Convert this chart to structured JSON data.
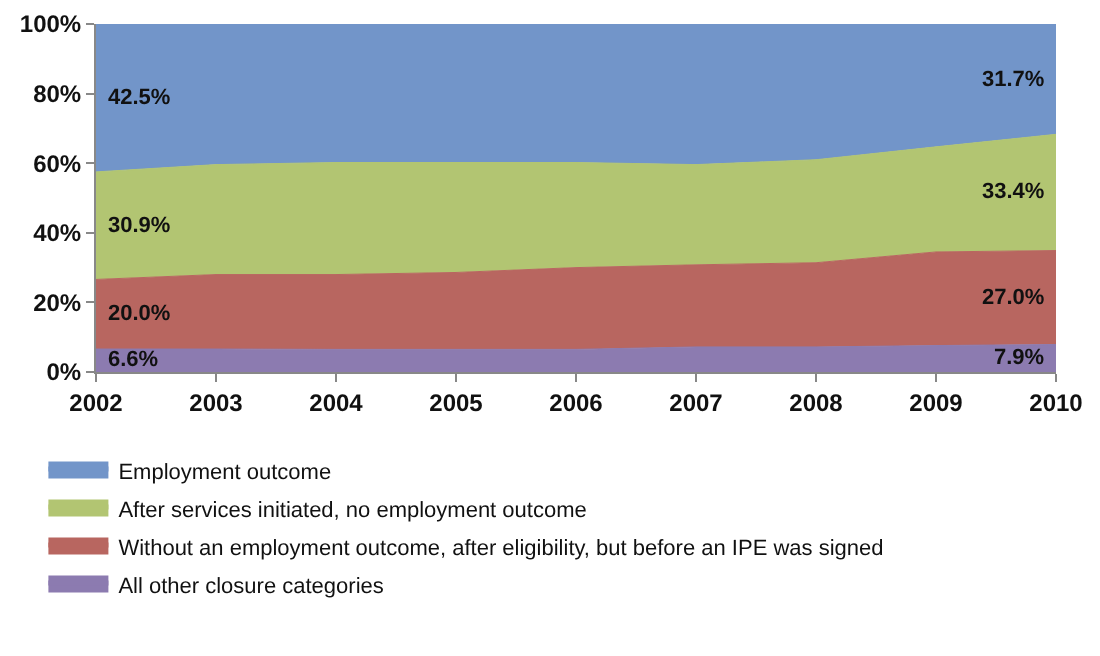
{
  "chart_data": {
    "type": "area",
    "stacked": true,
    "x": [
      2002,
      2003,
      2004,
      2005,
      2006,
      2007,
      2008,
      2009,
      2010
    ],
    "xlim": [
      2002,
      2010
    ],
    "xticks": [
      2002,
      2003,
      2004,
      2005,
      2006,
      2007,
      2008,
      2009,
      2010
    ],
    "ylim": [
      0,
      100
    ],
    "yticks": [
      {
        "value": 0,
        "label": "0%"
      },
      {
        "value": 20,
        "label": "20%"
      },
      {
        "value": 40,
        "label": "40%"
      },
      {
        "value": 60,
        "label": "60%"
      },
      {
        "value": 80,
        "label": "80%"
      },
      {
        "value": 100,
        "label": "100%"
      }
    ],
    "legend": "bottom",
    "series": [
      {
        "name": "All other closure categories",
        "color": "#8c7bb0",
        "values": [
          6.6,
          6.6,
          6.5,
          6.5,
          6.5,
          7.2,
          7.2,
          7.6,
          7.9
        ],
        "value_labels": [
          "6.6%",
          null,
          null,
          null,
          null,
          null,
          null,
          null,
          "7.9%"
        ]
      },
      {
        "name": "Without an employment outcome, after eligibility, but before an IPE was signed",
        "color": "#b86660",
        "values": [
          20.0,
          21.4,
          21.5,
          22.1,
          23.5,
          23.6,
          24.2,
          26.9,
          27.0
        ],
        "value_labels": [
          "20.0%",
          null,
          null,
          null,
          null,
          null,
          null,
          null,
          "27.0%"
        ]
      },
      {
        "name": "After services initiated, no employment outcome",
        "color": "#b2c572",
        "values": [
          30.9,
          31.6,
          32.2,
          31.6,
          30.2,
          28.8,
          29.6,
          30.2,
          33.4
        ],
        "value_labels": [
          "30.9%",
          null,
          null,
          null,
          null,
          null,
          null,
          null,
          "33.4%"
        ]
      },
      {
        "name": "Employment outcome",
        "color": "#7295c9",
        "values": [
          42.5,
          40.4,
          39.8,
          39.8,
          39.8,
          40.4,
          39.0,
          35.3,
          31.7
        ],
        "value_labels": [
          "42.5%",
          null,
          null,
          null,
          null,
          null,
          null,
          null,
          "31.7%"
        ]
      }
    ]
  }
}
